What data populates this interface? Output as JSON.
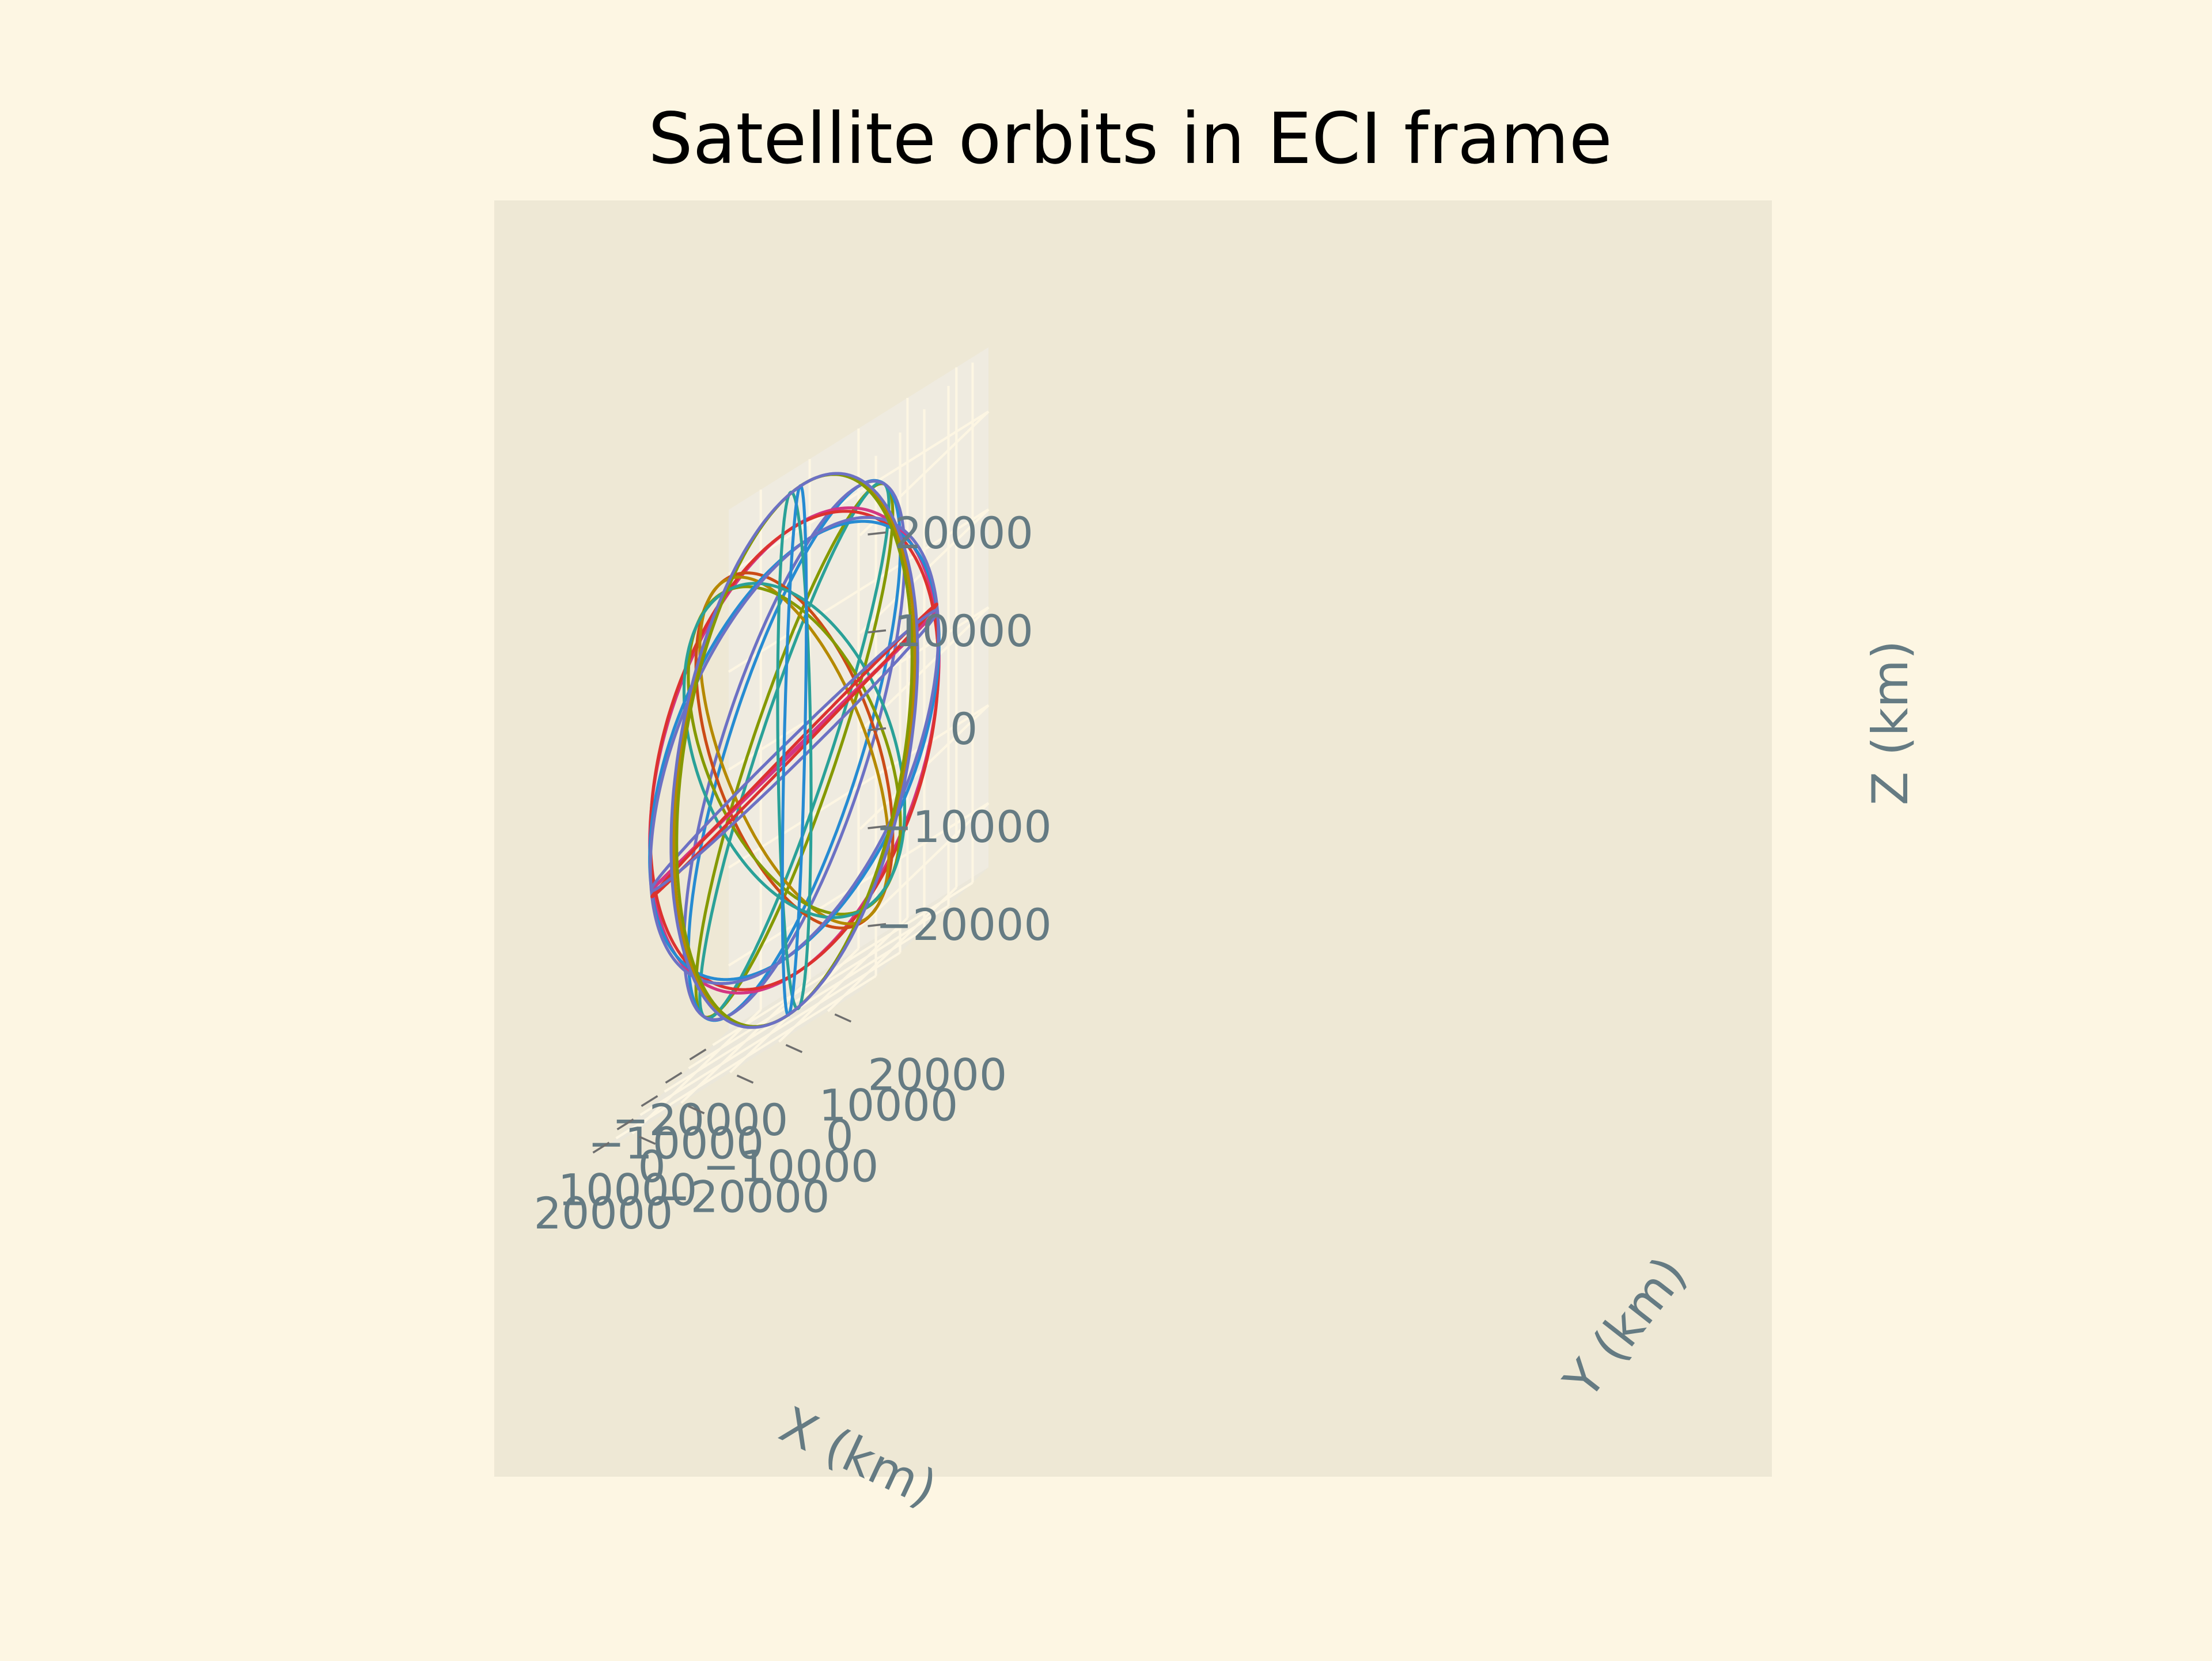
{
  "chart_data": {
    "type": "line",
    "projection": "3d",
    "title": "Satellite orbits in ECI frame",
    "xlabel": "X (km)",
    "ylabel": "Y (km)",
    "zlabel": "Z (km)",
    "xlim": [
      -26562,
      26562
    ],
    "ylim": [
      -26562,
      26562
    ],
    "zlim": [
      -26562,
      26562
    ],
    "xticks": [
      -20000,
      -10000,
      0,
      10000,
      20000
    ],
    "yticks": [
      -20000,
      -10000,
      0,
      10000,
      20000
    ],
    "zticks": [
      -20000,
      -10000,
      0,
      10000,
      20000
    ],
    "xtick_labels": [
      "−20000",
      "−10000",
      "0",
      "10000",
      "20000"
    ],
    "ytick_labels": [
      "−20000",
      "−10000",
      "0",
      "10000",
      "20000"
    ],
    "ztick_labels": [
      "−20000",
      "−10000",
      "0",
      "10000",
      "20000"
    ],
    "grid": true,
    "legend": "none",
    "view": {
      "elev_deg": 30,
      "azim_deg": -60
    },
    "orbit_radius_km": 26560,
    "series": [
      {
        "color": "#859900",
        "plane": {
          "inclination_deg": 55,
          "raan_deg": 0
        }
      },
      {
        "color": "#2aa198",
        "plane": {
          "inclination_deg": 55,
          "raan_deg": 4
        }
      },
      {
        "color": "#268bd2",
        "plane": {
          "inclination_deg": 55,
          "raan_deg": 60
        }
      },
      {
        "color": "#6c71c4",
        "plane": {
          "inclination_deg": 55,
          "raan_deg": 64
        }
      },
      {
        "color": "#d33682",
        "plane": {
          "inclination_deg": 55,
          "raan_deg": 120
        }
      },
      {
        "color": "#dc322f",
        "plane": {
          "inclination_deg": 55,
          "raan_deg": 124
        }
      },
      {
        "color": "#cb4b16",
        "plane": {
          "inclination_deg": 55,
          "raan_deg": 180
        }
      },
      {
        "color": "#b58900",
        "plane": {
          "inclination_deg": 55,
          "raan_deg": 184
        }
      },
      {
        "color": "#859900",
        "plane": {
          "inclination_deg": 55,
          "raan_deg": 240
        }
      },
      {
        "color": "#2aa198",
        "plane": {
          "inclination_deg": 55,
          "raan_deg": 244
        }
      },
      {
        "color": "#268bd2",
        "plane": {
          "inclination_deg": 55,
          "raan_deg": 300
        }
      },
      {
        "color": "#6c71c4",
        "plane": {
          "inclination_deg": 55,
          "raan_deg": 304
        }
      },
      {
        "color": "#d33682",
        "plane": {
          "inclination_deg": 10,
          "raan_deg": 0
        }
      },
      {
        "color": "#dc322f",
        "plane": {
          "inclination_deg": 11,
          "raan_deg": 10
        }
      },
      {
        "color": "#6c71c4",
        "plane": {
          "inclination_deg": 9,
          "raan_deg": 20
        }
      },
      {
        "color": "#b58900",
        "plane": {
          "inclination_deg": 90,
          "raan_deg": 150
        }
      },
      {
        "color": "#859900",
        "plane": {
          "inclination_deg": 90,
          "raan_deg": 152
        }
      },
      {
        "color": "#2aa198",
        "plane": {
          "inclination_deg": 88,
          "raan_deg": 200
        }
      },
      {
        "color": "#268bd2",
        "plane": {
          "inclination_deg": 92,
          "raan_deg": 202
        }
      },
      {
        "color": "#6c71c4",
        "plane": {
          "inclination_deg": 90,
          "raan_deg": 148
        }
      }
    ],
    "colors": {
      "figure_background": "#fdf6e3",
      "axes_background": "#eee8d5",
      "pane": "#e9e6da",
      "grid": "#fdf6e3",
      "tick_text": "#657b83",
      "title_text": "#000000"
    }
  }
}
